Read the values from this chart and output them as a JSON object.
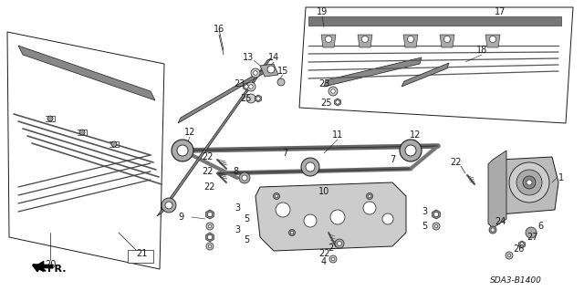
{
  "background_color": "#ffffff",
  "diagram_code": "SDA3-B1400",
  "fr_label": "FR.",
  "line_color": "#1a1a1a",
  "gray_dark": "#444444",
  "gray_mid": "#777777",
  "gray_light": "#aaaaaa",
  "gray_fill": "#cccccc",
  "font_size_parts": 7,
  "font_size_code": 6.5,
  "font_size_fr": 8
}
